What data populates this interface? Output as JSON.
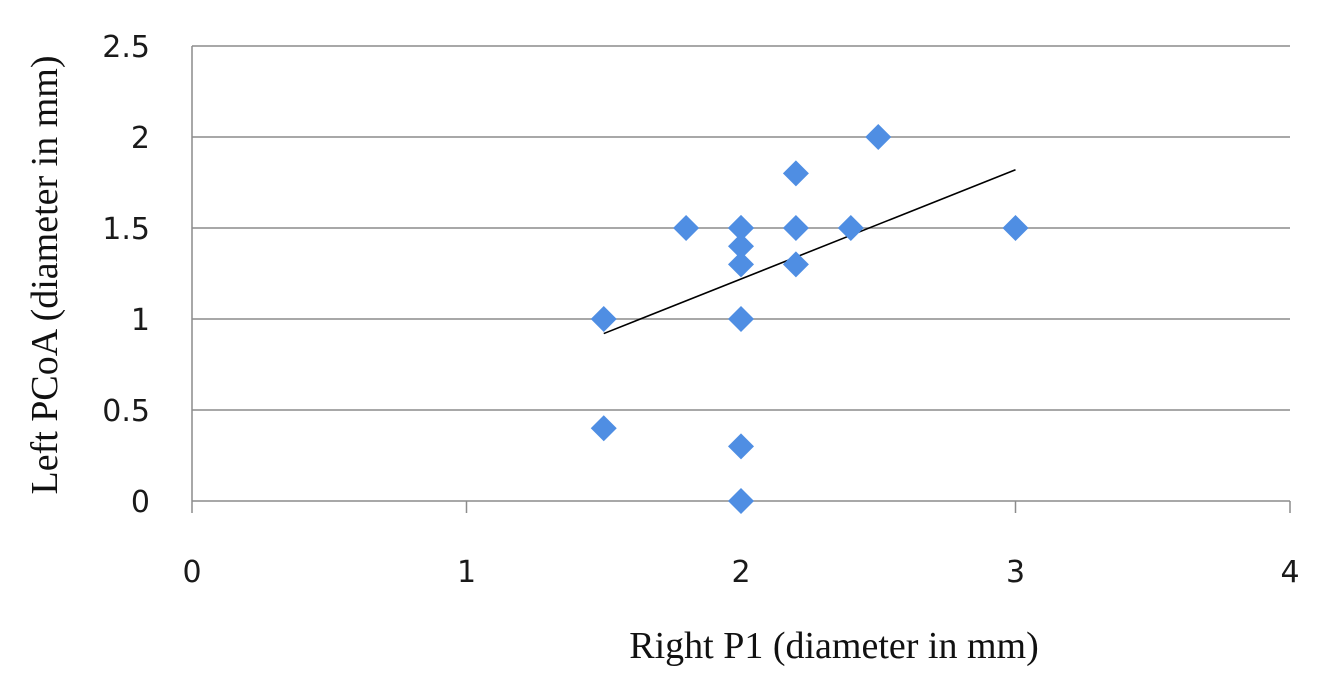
{
  "chart_data": {
    "type": "scatter",
    "xlabel": "Right P1 (diameter in mm)",
    "ylabel": "Left PCoA (diameter in mm)",
    "xlim": [
      0,
      4
    ],
    "ylim": [
      0,
      2.5
    ],
    "x_ticks": [
      "0",
      "1",
      "2",
      "3",
      "4"
    ],
    "y_ticks": [
      "0",
      "0.5",
      "1",
      "1.5",
      "2",
      "2.5"
    ],
    "grid": "horizontal",
    "legend": "none",
    "marker": "diamond",
    "marker_color": "#4f8ee3",
    "series": [
      {
        "points": [
          {
            "x": 1.5,
            "y": 1.0
          },
          {
            "x": 1.5,
            "y": 0.4
          },
          {
            "x": 1.8,
            "y": 1.5
          },
          {
            "x": 2.0,
            "y": 1.5
          },
          {
            "x": 2.0,
            "y": 1.5
          },
          {
            "x": 2.0,
            "y": 1.4
          },
          {
            "x": 2.0,
            "y": 1.3
          },
          {
            "x": 2.0,
            "y": 1.0
          },
          {
            "x": 2.0,
            "y": 0.3
          },
          {
            "x": 2.0,
            "y": 0.0
          },
          {
            "x": 2.2,
            "y": 1.8
          },
          {
            "x": 2.2,
            "y": 1.5
          },
          {
            "x": 2.2,
            "y": 1.3
          },
          {
            "x": 2.4,
            "y": 1.5
          },
          {
            "x": 2.5,
            "y": 2.0
          },
          {
            "x": 3.0,
            "y": 1.5
          }
        ]
      }
    ],
    "trendline": {
      "type": "linear",
      "x": [
        1.5,
        3.0
      ],
      "y": [
        0.92,
        1.82
      ],
      "color": "#000000"
    }
  }
}
